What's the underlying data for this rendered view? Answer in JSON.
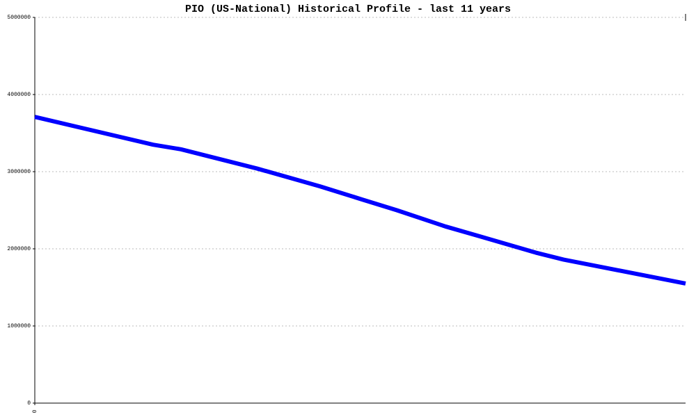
{
  "chart_data": {
    "type": "line",
    "title": "PIO (US-National) Historical Profile - last 11 years",
    "x": [
      0,
      2,
      2.47,
      3.76,
      4.82,
      5.53,
      6.12,
      6.94,
      7.53,
      8.47,
      8.94,
      11
    ],
    "series": [
      {
        "color": "#0000ff",
        "values": [
          3710000,
          3350000,
          3290000,
          3040000,
          2810000,
          2640000,
          2500000,
          2290000,
          2160000,
          1950000,
          1860000,
          1550000
        ]
      }
    ],
    "xlim": [
      0,
      11
    ],
    "xticks": [
      0
    ],
    "ylim": [
      0,
      5000000
    ],
    "yticks": [
      0,
      1000000,
      2000000,
      3000000,
      4000000,
      5000000
    ],
    "grid": true
  }
}
